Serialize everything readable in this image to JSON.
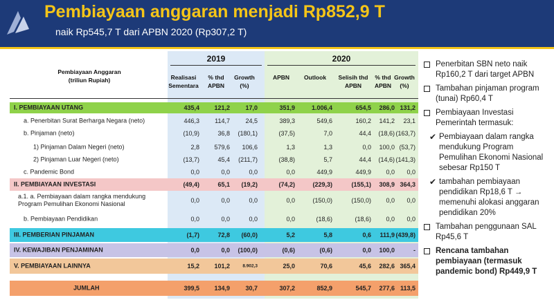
{
  "header": {
    "title": "Pembiayaan anggaran menjadi Rp852,9 T",
    "subtitle": "naik Rp545,7 T dari APBN 2020 (Rp307,2 T)"
  },
  "colors": {
    "header_bg": "#1d3a78",
    "title": "#f5c518"
  },
  "table": {
    "year_2019": "2019",
    "year_2020": "2020",
    "row_header": "Pembiayaan Anggaran\n(triliun Rupiah)",
    "columns": [
      "Realisasi\nSementara",
      "% thd\nAPBN",
      "Growth\n(%)",
      "APBN",
      "Outlook",
      "Selisih thd\nAPBN",
      "% thd\nAPBN",
      "Growth\n(%)"
    ],
    "rows": [
      {
        "label": "I.   PEMBIAYAAN UTANG",
        "values": [
          "435,4",
          "121,2",
          "17,0",
          "351,9",
          "1.006,4",
          "654,5",
          "286,0",
          "131,2"
        ]
      },
      {
        "label": "a.  Penerbitan Surat Berharga Negara (neto)",
        "values": [
          "446,3",
          "114,7",
          "24,5",
          "389,3",
          "549,6",
          "160,2",
          "141,2",
          "23,1"
        ]
      },
      {
        "label": "b.  Pinjaman (neto)",
        "values": [
          "(10,9)",
          "36,8",
          "(180,1)",
          "(37,5)",
          "7,0",
          "44,4",
          "(18,6)",
          "(163,7)"
        ]
      },
      {
        "label": "1)  Pinjaman Dalam Negeri (neto)",
        "values": [
          "2,8",
          "579,6",
          "106,6",
          "1,3",
          "1,3",
          "0,0",
          "100,0",
          "(53,7)"
        ]
      },
      {
        "label": "2)  Pinjaman Luar Negeri (neto)",
        "values": [
          "(13,7)",
          "45,4",
          "(211,7)",
          "(38,8)",
          "5,7",
          "44,4",
          "(14,6)",
          "(141,3)"
        ]
      },
      {
        "label": "c.  Pandemic Bond",
        "values": [
          "0,0",
          "0,0",
          "0,0",
          "0,0",
          "449,9",
          "449,9",
          "0,0",
          "0,0"
        ]
      },
      {
        "label": "II.   PEMBIAYAAN INVESTASI",
        "values": [
          "(49,4)",
          "65,1",
          "(19,2)",
          "(74,2)",
          "(229,3)",
          "(155,1)",
          "308,9",
          "364,3"
        ]
      },
      {
        "label": "a.1. a.  Pembiayaan dalam rangka mendukung\nProgram Pemulihan Ekonomi Nasional",
        "values": [
          "0,0",
          "0,0",
          "0,0",
          "0,0",
          "(150,0)",
          "(150,0)",
          "0,0",
          "0,0"
        ]
      },
      {
        "label": "b.  Pembiayaan Pendidikan",
        "values": [
          "0,0",
          "0,0",
          "0,0",
          "0,0",
          "(18,6)",
          "(18,6)",
          "0,0",
          "0,0"
        ]
      },
      {
        "label": "III.   PEMBERIAN PINJAMAN",
        "values": [
          "(1,7)",
          "72,8",
          "(60,0)",
          "5,2",
          "5,8",
          "0,6",
          "111,9",
          "(439,8)"
        ]
      },
      {
        "label": "IV.   KEWAJIBAN PENJAMINAN",
        "values": [
          "0,0",
          "0,0",
          "(100,0)",
          "(0,6)",
          "(0,6)",
          "0,0",
          "100,0",
          "-"
        ]
      },
      {
        "label": "V.   PEMBIAYAAN LAINNYA",
        "values": [
          "15,2",
          "101,2",
          "8.902,3",
          "25,0",
          "70,6",
          "45,6",
          "282,6",
          "365,4"
        ]
      },
      {
        "label": "JUMLAH",
        "values": [
          "399,5",
          "134,9",
          "30,7",
          "307,2",
          "852,9",
          "545,7",
          "277,6",
          "113,5"
        ]
      }
    ]
  },
  "bullets": [
    {
      "text": "Penerbitan SBN neto naik Rp160,2 T dari target APBN"
    },
    {
      "text": "Tambahan pinjaman program (tunai) Rp60,4 T"
    },
    {
      "text": "Pembiayaan Investasi Pemerintah termasuk:"
    },
    {
      "sub": "Pembiayaan dalam rangka mendukung Program Pemulihan Ekonomi Nasional sebesar Rp150 T"
    },
    {
      "sub": "tambahan pembiayaan pendidikan Rp18,6 T → memenuhi alokasi anggaran pendidikan 20%"
    },
    {
      "text": "Tambahan penggunaan SAL Rp45,6 T"
    },
    {
      "text": "Rencana tambahan pembiayaan (termasuk pandemic bond) Rp449,9 T"
    }
  ]
}
